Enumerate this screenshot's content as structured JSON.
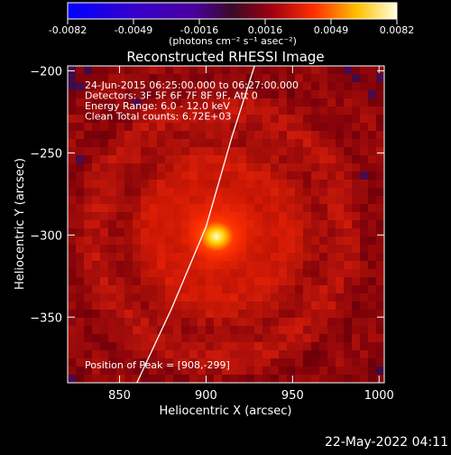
{
  "chart_data": {
    "type": "heatmap",
    "title": "Reconstructed RHESSI Image",
    "xlabel": "Heliocentric X (arcsec)",
    "ylabel": "Heliocentric Y (arcsec)",
    "xlim": [
      820,
      1003
    ],
    "ylim": [
      -390,
      -197
    ],
    "xticks": [
      850,
      900,
      950,
      1000
    ],
    "yticks": [
      -200,
      -250,
      -300,
      -350
    ],
    "colorbar": {
      "min": -0.0082,
      "max": 0.0082,
      "ticks": [
        "-0.0082",
        "-0.0049",
        "-0.0016",
        "0.0016",
        "0.0049",
        "0.0082"
      ],
      "unit_label": "(photons cm⁻² s⁻¹ asec⁻²)"
    },
    "annotations": [
      "24-Jun-2015 06:25:00.000 to 06:27:00.000",
      "Detectors: 3F 5F 6F 7F 8F 9F, Att 0",
      "Energy Range: 6.0 - 12.0 keV",
      "Clean     Total counts: 6.72E+03"
    ],
    "peak_label": "Position of Peak = [908,-299]",
    "peak": {
      "x": 908,
      "y": -299
    },
    "limb_curve": [
      [
        860,
        -390
      ],
      [
        880,
        -345
      ],
      [
        900,
        -295
      ],
      [
        915,
        -240
      ],
      [
        928,
        -197
      ]
    ]
  },
  "footer": {
    "timestamp": "22-May-2022 04:11"
  }
}
